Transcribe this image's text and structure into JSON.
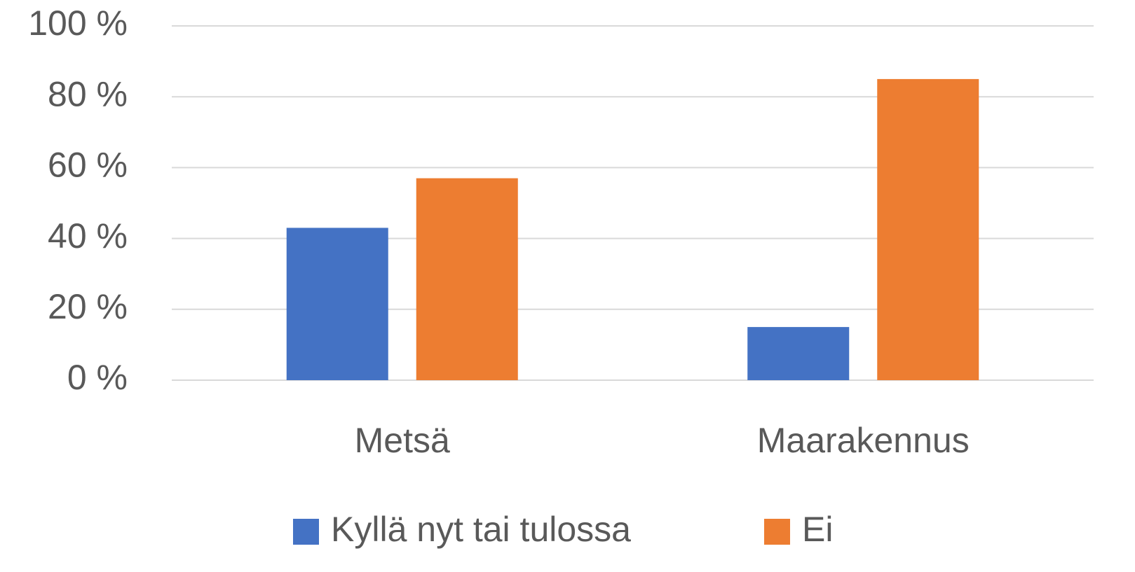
{
  "chart_data": {
    "type": "bar",
    "categories": [
      "Metsä",
      "Maarakennus"
    ],
    "series": [
      {
        "name": "Kyllä nyt tai tulossa",
        "color": "#4472c4",
        "values": [
          43,
          15
        ]
      },
      {
        "name": "Ei",
        "color": "#ed7d31",
        "values": [
          57,
          85
        ]
      }
    ],
    "ylim": [
      0,
      100
    ],
    "yticks": [
      {
        "value": 0,
        "label": "0 %"
      },
      {
        "value": 20,
        "label": "20 %"
      },
      {
        "value": 40,
        "label": "40 %"
      },
      {
        "value": 60,
        "label": "60 %"
      },
      {
        "value": 80,
        "label": "80 %"
      },
      {
        "value": 100,
        "label": "100 %"
      }
    ],
    "grid": true,
    "legend": "bottom"
  }
}
